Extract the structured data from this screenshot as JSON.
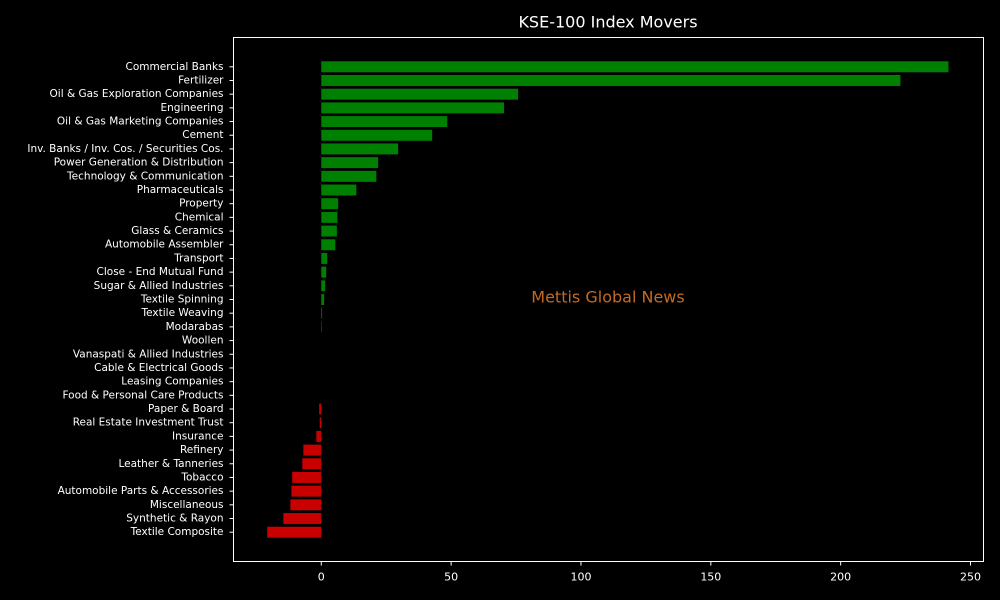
{
  "chart_data": {
    "type": "barh",
    "title": "KSE-100 Index Movers",
    "annotation": {
      "text": "Mettis Global News",
      "color": "#c46a22"
    },
    "categories": [
      "Commercial Banks",
      "Fertilizer",
      "Oil & Gas Exploration Companies",
      "Engineering",
      "Oil & Gas Marketing Companies",
      "Cement",
      "Inv. Banks / Inv. Cos. / Securities Cos.",
      "Power Generation & Distribution",
      "Technology & Communication",
      "Pharmaceuticals",
      "Property",
      "Chemical",
      "Glass & Ceramics",
      "Automobile Assembler",
      "Transport",
      "Close - End Mutual Fund",
      "Sugar & Allied Industries",
      "Textile Spinning",
      "Textile Weaving",
      "Modarabas",
      "Woollen",
      "Vanaspati & Allied Industries",
      "Cable & Electrical Goods",
      "Leasing Companies",
      "Food & Personal Care Products",
      "Paper & Board",
      "Real Estate Investment Trust",
      "Insurance",
      "Refinery",
      "Leather & Tanneries",
      "Tobacco",
      "Automobile Parts & Accessories",
      "Miscellaneous",
      "Synthetic & Rayon",
      "Textile Composite"
    ],
    "values": [
      241.5,
      223,
      75.8,
      70.4,
      48.5,
      42.7,
      29.6,
      21.9,
      21.2,
      13.5,
      6.5,
      6.2,
      6.0,
      5.4,
      2.3,
      1.9,
      1.5,
      1.1,
      0.3,
      0.2,
      0,
      0,
      0,
      0,
      0,
      -0.8,
      -0.6,
      -1.9,
      -6.9,
      -7.3,
      -11.2,
      -11.5,
      -11.9,
      -14.6,
      -20.8
    ],
    "color_positive": "#008000",
    "color_negative": "#c80000",
    "xlim": [
      -33.8,
      255
    ],
    "xticks": [
      0,
      50,
      100,
      150,
      200,
      250
    ]
  }
}
